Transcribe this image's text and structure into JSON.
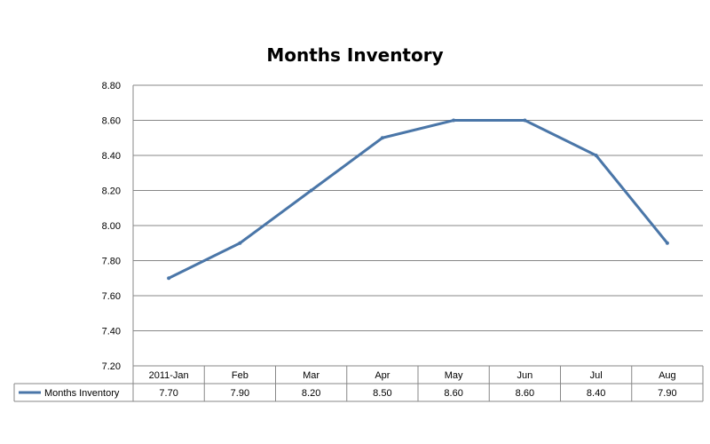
{
  "chart_data": {
    "type": "line",
    "title": "Months Inventory",
    "categories": [
      "2011-Jan",
      "Feb",
      "Mar",
      "Apr",
      "May",
      "Jun",
      "Jul",
      "Aug"
    ],
    "series": [
      {
        "name": "Months Inventory",
        "values": [
          7.7,
          7.9,
          8.2,
          8.5,
          8.6,
          8.6,
          8.4,
          7.9
        ],
        "labels": [
          "7.70",
          "7.90",
          "8.20",
          "8.50",
          "8.60",
          "8.60",
          "8.40",
          "7.90"
        ],
        "color": "#4a76a8"
      }
    ],
    "yticks": [
      "7.20",
      "7.40",
      "7.60",
      "7.80",
      "8.00",
      "8.20",
      "8.40",
      "8.60",
      "8.80"
    ],
    "ylim": [
      7.2,
      8.8
    ],
    "xlabel": "",
    "ylabel": "",
    "grid": true,
    "legend": "data-table"
  }
}
